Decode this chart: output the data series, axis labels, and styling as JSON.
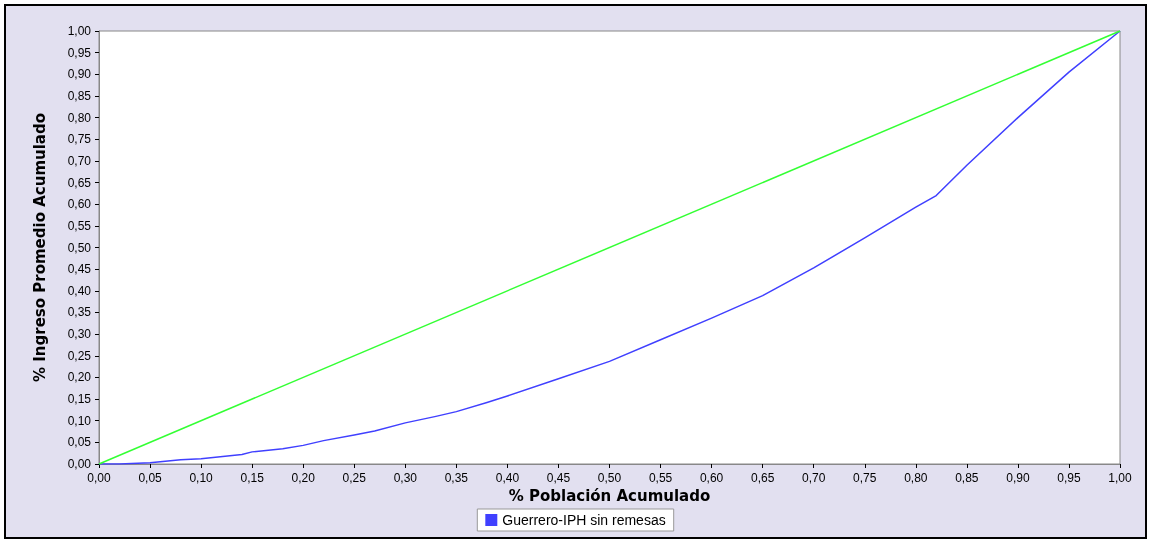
{
  "chart_data": {
    "type": "line",
    "xlabel": "% Población Acumulado",
    "ylabel": "% Ingreso Promedio Acumulado",
    "xlim": [
      0,
      1
    ],
    "ylim": [
      0,
      1
    ],
    "xticks": [
      {
        "value": 0,
        "label": "0,00"
      },
      {
        "value": 0.05,
        "label": "0,05"
      },
      {
        "value": 0.1,
        "label": "0,10"
      },
      {
        "value": 0.15,
        "label": "0,15"
      },
      {
        "value": 0.2,
        "label": "0,20"
      },
      {
        "value": 0.25,
        "label": "0,25"
      },
      {
        "value": 0.3,
        "label": "0,30"
      },
      {
        "value": 0.35,
        "label": "0,35"
      },
      {
        "value": 0.4,
        "label": "0,40"
      },
      {
        "value": 0.45,
        "label": "0,45"
      },
      {
        "value": 0.5,
        "label": "0,50"
      },
      {
        "value": 0.55,
        "label": "0,55"
      },
      {
        "value": 0.6,
        "label": "0,60"
      },
      {
        "value": 0.65,
        "label": "0,65"
      },
      {
        "value": 0.7,
        "label": "0,70"
      },
      {
        "value": 0.75,
        "label": "0,75"
      },
      {
        "value": 0.8,
        "label": "0,80"
      },
      {
        "value": 0.85,
        "label": "0,85"
      },
      {
        "value": 0.9,
        "label": "0,90"
      },
      {
        "value": 0.95,
        "label": "0,95"
      },
      {
        "value": 1,
        "label": "1,00"
      }
    ],
    "yticks": [
      {
        "value": 0,
        "label": "0,00"
      },
      {
        "value": 0.05,
        "label": "0,05"
      },
      {
        "value": 0.1,
        "label": "0,10"
      },
      {
        "value": 0.15,
        "label": "0,15"
      },
      {
        "value": 0.2,
        "label": "0,20"
      },
      {
        "value": 0.25,
        "label": "0,25"
      },
      {
        "value": 0.3,
        "label": "0,30"
      },
      {
        "value": 0.35,
        "label": "0,35"
      },
      {
        "value": 0.4,
        "label": "0,40"
      },
      {
        "value": 0.45,
        "label": "0,45"
      },
      {
        "value": 0.5,
        "label": "0,50"
      },
      {
        "value": 0.55,
        "label": "0,55"
      },
      {
        "value": 0.6,
        "label": "0,60"
      },
      {
        "value": 0.65,
        "label": "0,65"
      },
      {
        "value": 0.7,
        "label": "0,70"
      },
      {
        "value": 0.75,
        "label": "0,75"
      },
      {
        "value": 0.8,
        "label": "0,80"
      },
      {
        "value": 0.85,
        "label": "0,85"
      },
      {
        "value": 0.9,
        "label": "0,90"
      },
      {
        "value": 0.95,
        "label": "0,95"
      },
      {
        "value": 1,
        "label": "1,00"
      }
    ],
    "series": [
      {
        "name": "Guerrero-IPH sin remesas",
        "color": "#4040ff",
        "x": [
          0,
          0.02,
          0.05,
          0.08,
          0.1,
          0.14,
          0.15,
          0.18,
          0.2,
          0.22,
          0.25,
          0.27,
          0.3,
          0.33,
          0.35,
          0.38,
          0.4,
          0.45,
          0.5,
          0.55,
          0.6,
          0.65,
          0.7,
          0.75,
          0.8,
          0.82,
          0.85,
          0.9,
          0.95,
          1
        ],
        "values": [
          0,
          0,
          0.003,
          0.01,
          0.012,
          0.022,
          0.028,
          0.035,
          0.043,
          0.054,
          0.067,
          0.076,
          0.095,
          0.11,
          0.121,
          0.142,
          0.157,
          0.197,
          0.237,
          0.287,
          0.337,
          0.389,
          0.453,
          0.522,
          0.593,
          0.62,
          0.69,
          0.8,
          0.905,
          1
        ]
      },
      {
        "color": "#33ff33",
        "x": [
          0,
          1
        ],
        "values": [
          0,
          1
        ]
      }
    ],
    "legend": "bottom",
    "grid": false,
    "marker": "none",
    "line_style": "solid"
  }
}
